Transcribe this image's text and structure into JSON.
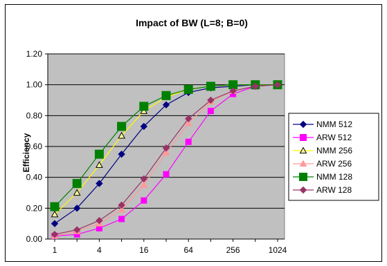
{
  "chart_data": {
    "type": "line",
    "title": "Impact of BW (L=8; B=0)",
    "xlabel": "",
    "ylabel": "Efficiency",
    "x": [
      1,
      2,
      4,
      8,
      16,
      32,
      64,
      128,
      256,
      512,
      1024
    ],
    "x_tick_labels": [
      "1",
      "4",
      "16",
      "64",
      "256",
      "1024"
    ],
    "x_tick_values": [
      1,
      4,
      16,
      64,
      256,
      1024
    ],
    "x_scale": "log2",
    "ylim": [
      0,
      1.2
    ],
    "y_ticks": [
      "0.00",
      "0.20",
      "0.40",
      "0.60",
      "0.80",
      "1.00",
      "1.20"
    ],
    "grid": true,
    "legend_position": "right",
    "series": [
      {
        "name": "NMM 512",
        "color": "#000080",
        "marker": "diamond",
        "fill": "#000080",
        "values": [
          0.1,
          0.2,
          0.36,
          0.55,
          0.73,
          0.87,
          0.95,
          0.98,
          0.99,
          1.0,
          1.0
        ]
      },
      {
        "name": "ARW 512",
        "color": "#FF00FF",
        "marker": "square",
        "fill": "#FF00FF",
        "values": [
          0.02,
          0.03,
          0.07,
          0.13,
          0.25,
          0.42,
          0.63,
          0.83,
          0.94,
          0.99,
          1.0
        ]
      },
      {
        "name": "NMM 256",
        "color": "#FFFF00",
        "marker": "triangle",
        "fill": "#FFFF99",
        "values": [
          0.16,
          0.3,
          0.48,
          0.67,
          0.83,
          0.92,
          0.97,
          0.99,
          1.0,
          1.0,
          1.0
        ]
      },
      {
        "name": "ARW 256",
        "color": "#FF9999",
        "marker": "triangle",
        "fill": "#FF9999",
        "values": [
          0.02,
          0.05,
          0.1,
          0.19,
          0.35,
          0.56,
          0.75,
          0.89,
          0.96,
          0.99,
          1.0
        ]
      },
      {
        "name": "NMM 128",
        "color": "#008000",
        "marker": "square",
        "fill": "#008000",
        "values": [
          0.21,
          0.36,
          0.55,
          0.73,
          0.86,
          0.93,
          0.97,
          0.99,
          1.0,
          1.0,
          1.0
        ]
      },
      {
        "name": "ARW 128",
        "color": "#993366",
        "marker": "diamond",
        "fill": "#993366",
        "values": [
          0.03,
          0.06,
          0.12,
          0.22,
          0.39,
          0.59,
          0.78,
          0.9,
          0.96,
          0.99,
          1.0
        ]
      }
    ]
  }
}
